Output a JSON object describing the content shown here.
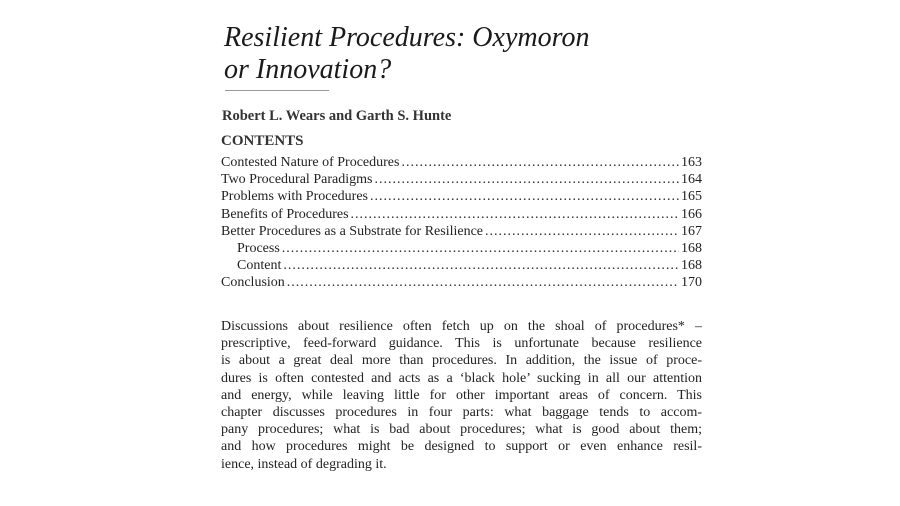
{
  "title": {
    "line1": "Resilient Procedures: Oxymoron",
    "line2": "or Innovation?"
  },
  "authors": "Robert L. Wears and Garth S. Hunte",
  "contents_heading": "CONTENTS",
  "toc": [
    {
      "label": "Contested Nature of Procedures",
      "page": "163"
    },
    {
      "label": "Two Procedural Paradigms",
      "page": "164"
    },
    {
      "label": "Problems with Procedures",
      "page": "165"
    },
    {
      "label": "Benefits of Procedures",
      "page": "166"
    },
    {
      "label": "Better Procedures as a Substrate for Resilience",
      "page": "167"
    },
    {
      "label": "Process",
      "page": "168"
    },
    {
      "label": "Content",
      "page": "168"
    },
    {
      "label": "Conclusion",
      "page": "170"
    }
  ],
  "paragraph_lines": [
    "Discussions about resilience often fetch up on the shoal of procedures* –",
    "prescriptive, feed-forward guidance. This is unfortunate because resilience",
    "is about a great deal more than procedures. In addition, the issue of proce-",
    "dures is often contested and acts as a ‘black hole’ sucking in all our attention",
    "and energy, while leaving little for other important areas of concern. This",
    "chapter discusses procedures in four parts: what baggage tends to accom-",
    "pany procedures; what is bad about procedures; what is good about them;",
    "and how procedures might be designed to support or even enhance resil-",
    "ience, instead of degrading it."
  ]
}
